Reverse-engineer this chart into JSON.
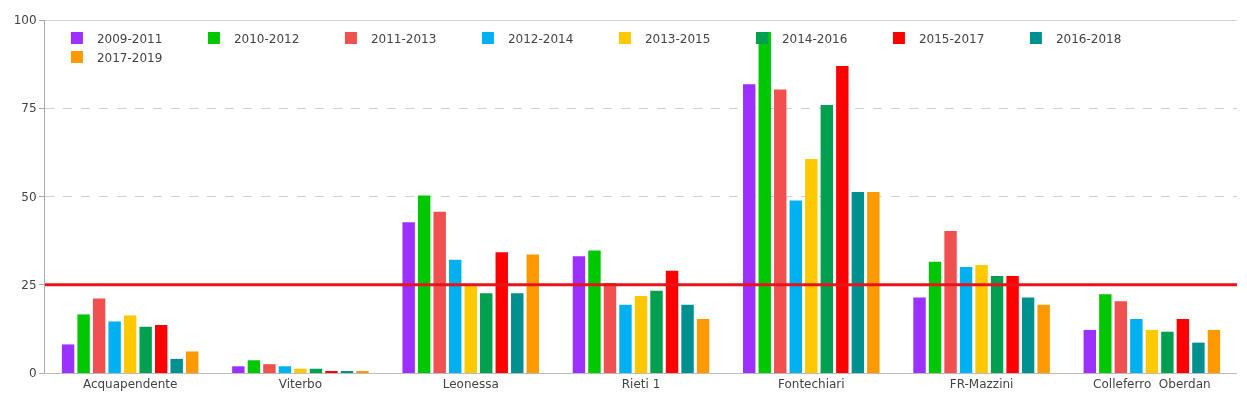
{
  "chart_data": {
    "type": "bar",
    "categories": [
      "Acquapendente",
      "Viterbo",
      "Leonessa",
      "Rieti 1",
      "Fontechiari",
      "FR-Mazzini",
      "Colleferro  Oberdan"
    ],
    "series": [
      {
        "name": "2009-2011",
        "color": "#9b30ff",
        "values": [
          8.1,
          1.9,
          42.7,
          33.1,
          81.8,
          21.4,
          12.2
        ]
      },
      {
        "name": "2010-2012",
        "color": "#00c800",
        "values": [
          16.6,
          3.6,
          50.3,
          34.7,
          96.6,
          31.5,
          22.3
        ]
      },
      {
        "name": "2011-2013",
        "color": "#f05050",
        "values": [
          21.1,
          2.5,
          45.7,
          25.5,
          80.3,
          40.2,
          20.3
        ]
      },
      {
        "name": "2012-2014",
        "color": "#00b0f0",
        "values": [
          14.6,
          1.9,
          32.1,
          19.3,
          48.9,
          30.0,
          15.3
        ]
      },
      {
        "name": "2013-2015",
        "color": "#ffc800",
        "values": [
          16.3,
          1.2,
          25.0,
          21.8,
          60.6,
          30.6,
          12.2
        ]
      },
      {
        "name": "2014-2016",
        "color": "#00a050",
        "values": [
          13.1,
          1.2,
          22.6,
          23.3,
          75.9,
          27.5,
          11.7
        ]
      },
      {
        "name": "2015-2017",
        "color": "#ff0000",
        "values": [
          13.6,
          0.4,
          34.2,
          29.0,
          87.0,
          27.5,
          15.3
        ]
      },
      {
        "name": "2016-2018",
        "color": "#009090",
        "values": [
          4.0,
          0.4,
          22.6,
          19.3,
          51.3,
          21.4,
          8.6
        ]
      },
      {
        "name": "2017-2019",
        "color": "#ff9900",
        "values": [
          6.1,
          0.4,
          33.6,
          15.3,
          51.3,
          19.3,
          12.2
        ]
      }
    ],
    "ylim": [
      0,
      100
    ],
    "yticks": [
      0,
      25,
      50,
      75,
      100
    ],
    "ref_lines": [
      {
        "axis": "y",
        "value": 25,
        "color": "#e8141c"
      }
    ],
    "grid": "y",
    "legend": "top left"
  }
}
